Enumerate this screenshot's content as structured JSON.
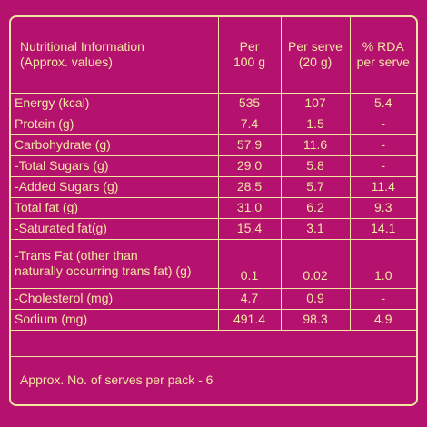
{
  "header": {
    "col1_line1": "Nutritional Information",
    "col1_line2": "(Approx. values)",
    "col2_line1": "Per",
    "col2_line2": "100 g",
    "col3_line1": "Per serve",
    "col3_line2": "(20 g)",
    "col4_line1": "% RDA",
    "col4_line2": "per serve"
  },
  "rows": [
    {
      "label": "Energy (kcal)",
      "per100": "535",
      "perServe": "107",
      "rda": "5.4"
    },
    {
      "label": "Protein (g)",
      "per100": "7.4",
      "perServe": "1.5",
      "rda": "-"
    },
    {
      "label": "Carbohydrate (g)",
      "per100": "57.9",
      "perServe": "11.6",
      "rda": "-"
    },
    {
      "label": "-Total Sugars (g)",
      "per100": "29.0",
      "perServe": "5.8",
      "rda": "-"
    },
    {
      "label": "-Added Sugars (g)",
      "per100": "28.5",
      "perServe": "5.7",
      "rda": "11.4"
    },
    {
      "label": "Total fat (g)",
      "per100": "31.0",
      "perServe": "6.2",
      "rda": "9.3"
    },
    {
      "label": "-Saturated fat(g)",
      "per100": "15.4",
      "perServe": "3.1",
      "rda": "14.1"
    },
    {
      "label_line1": "-Trans Fat (other than",
      "label_line2": "naturally occurring trans fat) (g)",
      "per100": "0.1",
      "perServe": "0.02",
      "rda": "1.0"
    },
    {
      "label": "-Cholesterol (mg)",
      "per100": "4.7",
      "perServe": "0.9",
      "rda": "-"
    },
    {
      "label": "Sodium (mg)",
      "per100": "491.4",
      "perServe": "98.3",
      "rda": "4.9"
    }
  ],
  "footer": "Approx. No. of serves per pack - 6",
  "colors": {
    "background": "#b4126e",
    "text": "#f3e6a1"
  }
}
